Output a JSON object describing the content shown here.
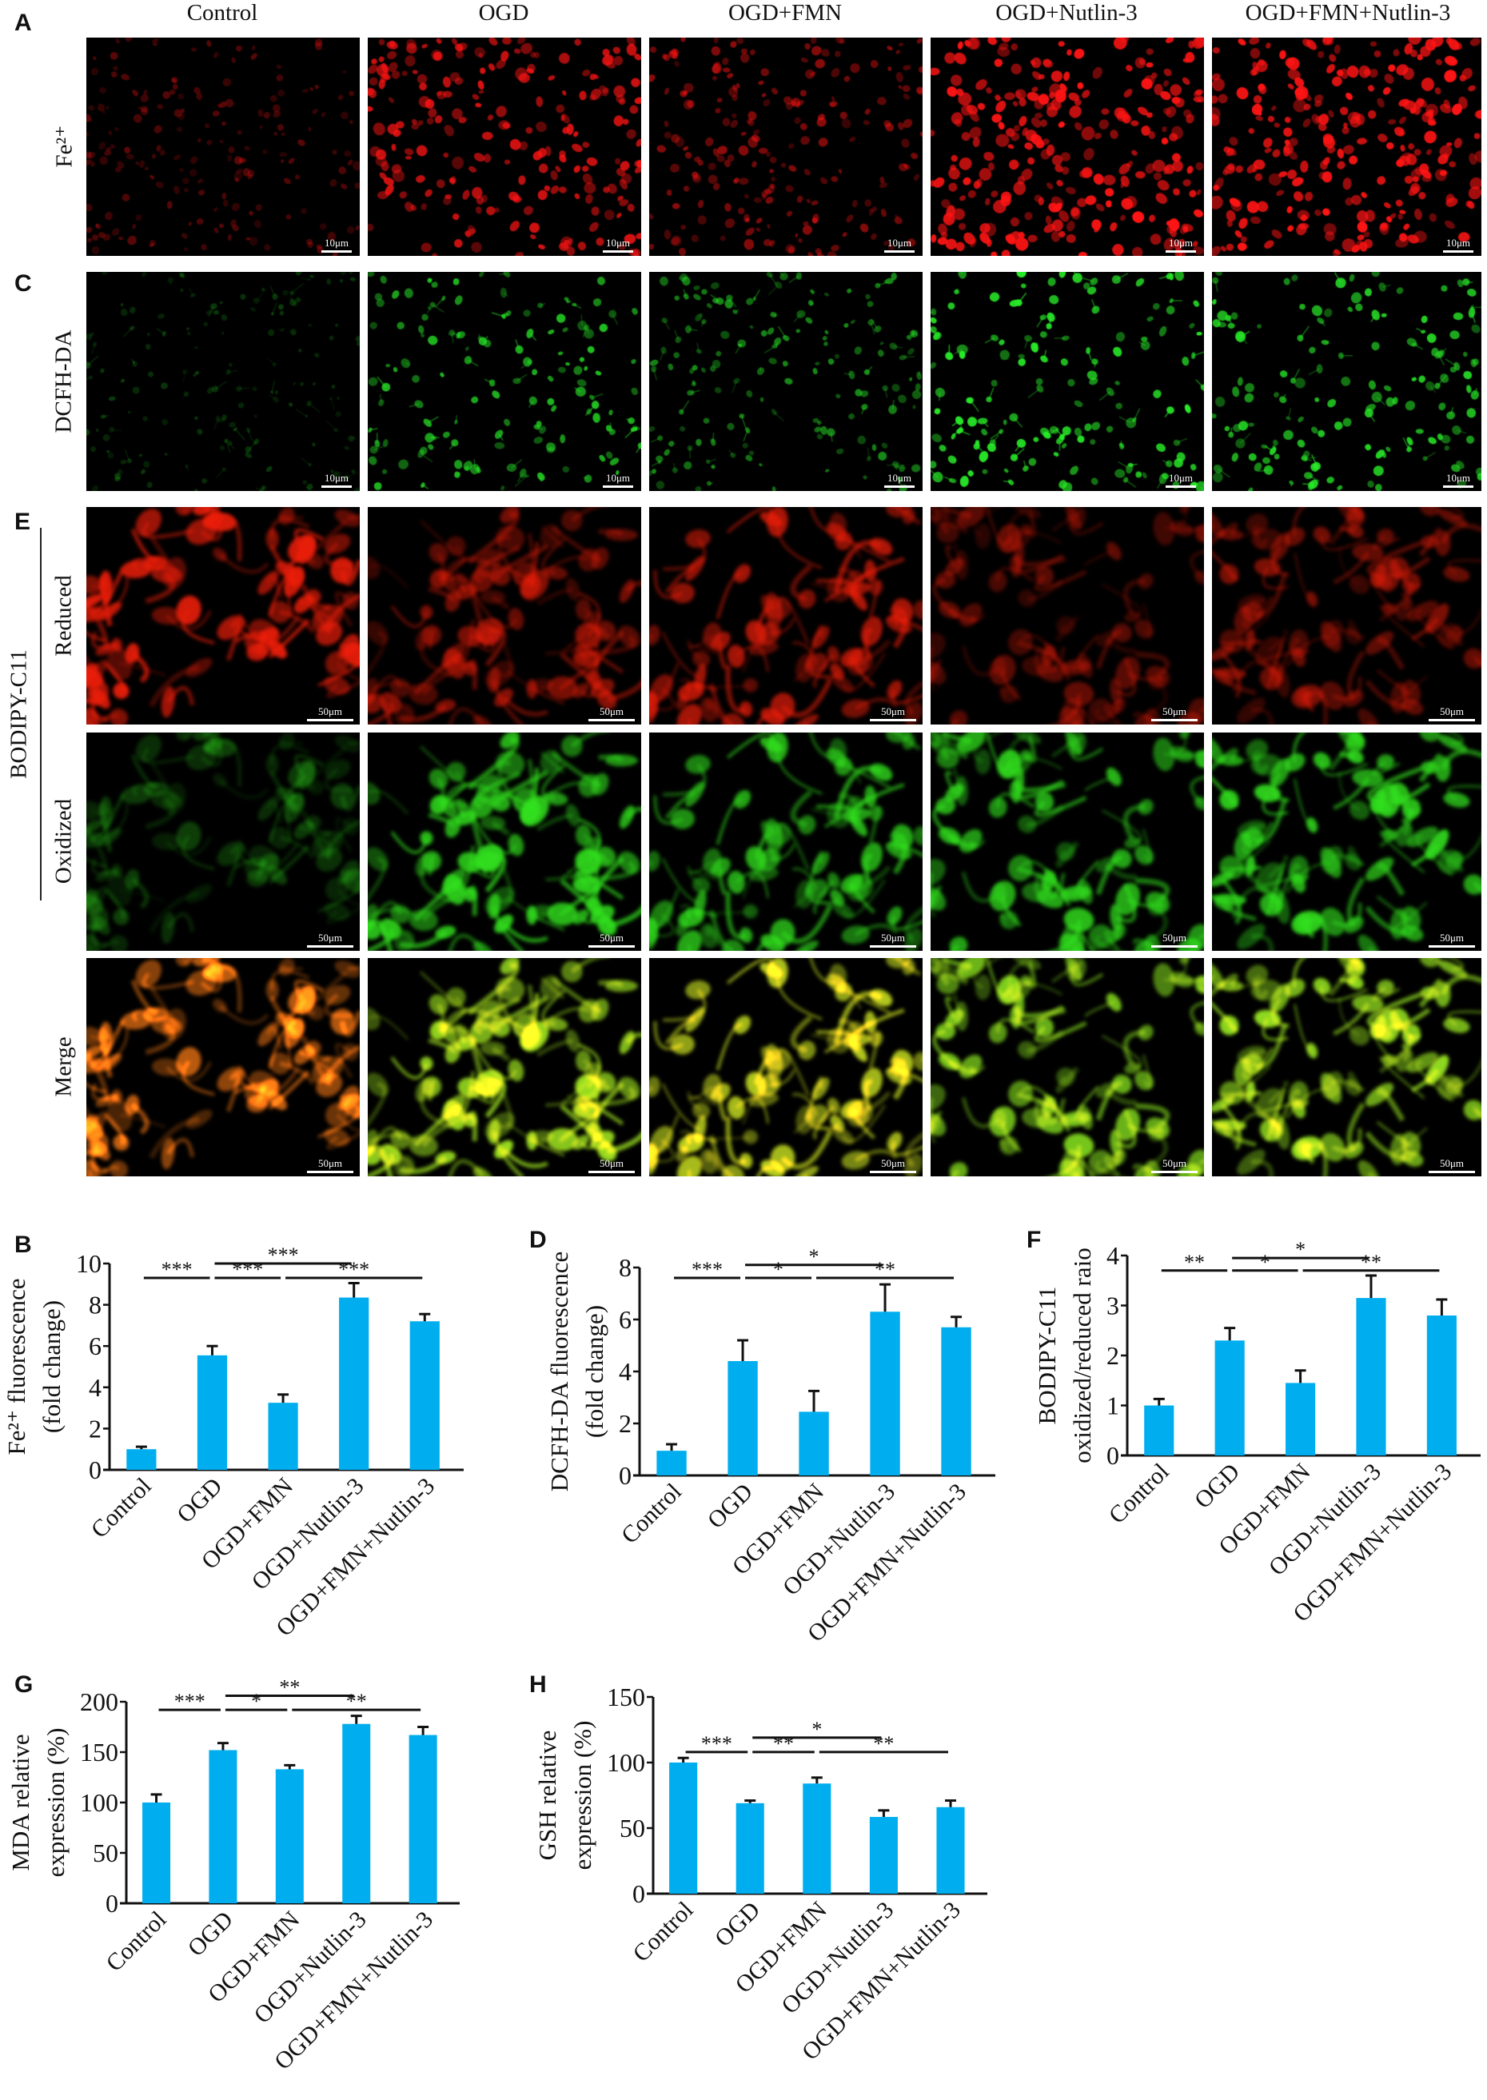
{
  "images": {
    "column_headers": [
      "Control",
      "OGD",
      "OGD+FMN",
      "OGD+Nutlin-3",
      "OGD+FMN+Nutlin-3"
    ],
    "panel_letters": {
      "a": "A",
      "c": "C",
      "e": "E"
    },
    "row_labels": {
      "fe": "Fe²⁺",
      "dcfh": "DCFH-DA",
      "bodipy": "BODIPY-C11",
      "reduced": "Reduced",
      "oxidized": "Oxidized",
      "merge": "Merge"
    },
    "scale_bars": {
      "small": "10μm",
      "large": "50μm"
    },
    "colors": {
      "red_channel": "#ff1a1a",
      "green_channel": "#22e022",
      "background": "#000000"
    }
  },
  "chart_data": [
    {
      "panel": "B",
      "type": "bar",
      "categories": [
        "Control",
        "OGD",
        "OGD+FMN",
        "OGD+Nutlin-3",
        "OGD+FMN+Nutlin-3"
      ],
      "values": [
        1.0,
        5.55,
        3.25,
        8.35,
        7.2
      ],
      "errors": [
        0.12,
        0.45,
        0.4,
        0.7,
        0.35
      ],
      "ylabel": [
        "Fe²⁺ fluorescence",
        "(fold change)"
      ],
      "ylim": [
        0,
        10
      ],
      "yticks": [
        "0",
        "2",
        "4",
        "6",
        "8",
        "10"
      ],
      "bar_color": "#00AEEF",
      "grid": false,
      "significance": [
        {
          "groups": [
            0,
            1
          ],
          "label": "***",
          "level": 9.3
        },
        {
          "groups": [
            1,
            2
          ],
          "label": "***",
          "level": 9.3
        },
        {
          "groups": [
            2,
            4
          ],
          "label": "***",
          "level": 9.3
        },
        {
          "groups": [
            1,
            3
          ],
          "label": "***",
          "level": 10.0
        }
      ]
    },
    {
      "panel": "D",
      "type": "bar",
      "categories": [
        "Control",
        "OGD",
        "OGD+FMN",
        "OGD+Nutlin-3",
        "OGD+FMN+Nutlin-3"
      ],
      "values": [
        0.95,
        4.4,
        2.45,
        6.3,
        5.7
      ],
      "errors": [
        0.25,
        0.8,
        0.8,
        1.05,
        0.4
      ],
      "ylabel": [
        "DCFH-DA fluorescence",
        "(fold change)"
      ],
      "ylim": [
        0,
        8
      ],
      "yticks": [
        "0",
        "2",
        "4",
        "6",
        "8"
      ],
      "bar_color": "#00AEEF",
      "grid": false,
      "significance": [
        {
          "groups": [
            0,
            1
          ],
          "label": "***",
          "level": 7.6
        },
        {
          "groups": [
            1,
            2
          ],
          "label": "*",
          "level": 7.6
        },
        {
          "groups": [
            2,
            4
          ],
          "label": "**",
          "level": 7.6
        },
        {
          "groups": [
            1,
            3
          ],
          "label": "*",
          "level": 8.1
        }
      ]
    },
    {
      "panel": "F",
      "type": "bar",
      "categories": [
        "Control",
        "OGD",
        "OGD+FMN",
        "OGD+Nutlin-3",
        "OGD+FMN+Nutlin-3"
      ],
      "values": [
        1.0,
        2.3,
        1.45,
        3.15,
        2.8
      ],
      "errors": [
        0.13,
        0.25,
        0.25,
        0.45,
        0.32
      ],
      "ylabel": [
        "BODIPY-C11",
        "oxidized/reduced raio"
      ],
      "ylim": [
        0,
        4
      ],
      "yticks": [
        "0",
        "1",
        "2",
        "3",
        "4"
      ],
      "bar_color": "#00AEEF",
      "grid": false,
      "significance": [
        {
          "groups": [
            0,
            1
          ],
          "label": "**",
          "level": 3.7
        },
        {
          "groups": [
            1,
            2
          ],
          "label": "*",
          "level": 3.7
        },
        {
          "groups": [
            2,
            4
          ],
          "label": "**",
          "level": 3.7
        },
        {
          "groups": [
            1,
            3
          ],
          "label": "*",
          "level": 3.95
        }
      ]
    },
    {
      "panel": "G",
      "type": "bar",
      "categories": [
        "Control",
        "OGD",
        "OGD+FMN",
        "OGD+Nutlin-3",
        "OGD+FMN+Nutlin-3"
      ],
      "values": [
        100,
        152,
        133,
        178,
        167
      ],
      "errors": [
        8,
        7,
        4,
        8,
        8
      ],
      "ylabel": [
        "MDA relative",
        "expression (%)"
      ],
      "ylim": [
        0,
        200
      ],
      "yticks": [
        "0",
        "50",
        "100",
        "150",
        "200"
      ],
      "bar_color": "#00AEEF",
      "grid": false,
      "significance": [
        {
          "groups": [
            0,
            1
          ],
          "label": "***",
          "level": 192
        },
        {
          "groups": [
            1,
            2
          ],
          "label": "*",
          "level": 192
        },
        {
          "groups": [
            2,
            4
          ],
          "label": "**",
          "level": 192
        },
        {
          "groups": [
            1,
            3
          ],
          "label": "**",
          "level": 206
        }
      ]
    },
    {
      "panel": "H",
      "type": "bar",
      "categories": [
        "Control",
        "OGD",
        "OGD+FMN",
        "OGD+Nutlin-3",
        "OGD+FMN+Nutlin-3"
      ],
      "values": [
        100,
        69,
        84,
        58.5,
        66
      ],
      "errors": [
        3.5,
        2,
        4.5,
        5,
        5
      ],
      "ylabel": [
        "GSH relative",
        "expression (%)"
      ],
      "ylim": [
        0,
        150
      ],
      "yticks": [
        "0",
        "50",
        "100",
        "150"
      ],
      "bar_color": "#00AEEF",
      "grid": false,
      "significance": [
        {
          "groups": [
            0,
            1
          ],
          "label": "***",
          "level": 108
        },
        {
          "groups": [
            1,
            2
          ],
          "label": "**",
          "level": 108
        },
        {
          "groups": [
            2,
            4
          ],
          "label": "**",
          "level": 108
        },
        {
          "groups": [
            1,
            3
          ],
          "label": "*",
          "level": 119
        }
      ]
    }
  ]
}
